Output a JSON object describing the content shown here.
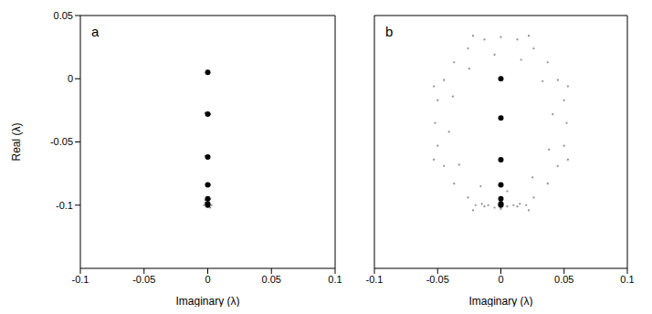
{
  "chart_data": [
    {
      "type": "scatter",
      "title": "a",
      "x_label": "Imaginary (λ)",
      "y_label": "Real (λ)",
      "xlim": [
        -0.1,
        0.1
      ],
      "xticks": [
        -0.1,
        -0.05,
        0,
        0.05,
        0.1
      ],
      "ylim": [
        -0.15,
        0.05
      ],
      "yticks": [
        -0.1,
        -0.05,
        0,
        0.05
      ],
      "series": [
        {
          "color": "#8c8c8c",
          "marker": "point",
          "x": [
            0.001,
            -0.001,
            0.002,
            -0.002,
            0.001,
            -0.002,
            0.002,
            -0.001,
            0.002,
            -0.002,
            0.003,
            -0.003,
            0.002,
            -0.002
          ],
          "y": [
            0.005,
            0.005,
            -0.028,
            -0.027,
            -0.062,
            -0.061,
            -0.084,
            -0.085,
            -0.095,
            -0.096,
            -0.1,
            -0.1,
            -0.102,
            -0.098
          ]
        },
        {
          "color": "#000000",
          "marker": "dot",
          "x": [
            0,
            0,
            0,
            0,
            0,
            0,
            0
          ],
          "y": [
            0.005,
            -0.028,
            -0.062,
            -0.084,
            -0.095,
            -0.099,
            -0.1
          ]
        }
      ]
    },
    {
      "type": "scatter",
      "title": "b",
      "x_label": "Imaginary (λ)",
      "tick_labels": "x",
      "xlim": [
        -0.1,
        0.1
      ],
      "xticks": [
        -0.1,
        -0.05,
        0,
        0.05,
        0.1
      ],
      "ylim": [
        -0.15,
        0.05
      ],
      "yticks": [
        -0.1,
        -0.05,
        0,
        0.05
      ],
      "series": [
        {
          "color": "#8c8c8c",
          "marker": "point",
          "x": [
            0.052,
            0.05,
            0.045,
            0.037,
            0.026,
            0.013,
            0,
            -0.013,
            -0.026,
            -0.037,
            -0.045,
            -0.05,
            -0.052,
            -0.05,
            -0.045,
            -0.037,
            -0.026,
            -0.013,
            0,
            0.013,
            0.026,
            0.037,
            0.045,
            0.05,
            0.041,
            0.033,
            0.016,
            -0.005,
            -0.025,
            -0.038,
            -0.041,
            -0.033,
            -0.016,
            0.005,
            0.025,
            0.038,
            0.053,
            0.022,
            -0.022,
            -0.053,
            -0.053,
            -0.022,
            0.022,
            0.053,
            -0.01,
            0.01,
            -0.005,
            0.005,
            0.015,
            -0.015,
            0.02,
            -0.02
          ],
          "y": [
            -0.035,
            -0.017,
            -0.001,
            0.013,
            0.024,
            0.031,
            0.033,
            0.031,
            0.024,
            0.013,
            -0.001,
            -0.017,
            -0.035,
            -0.053,
            -0.069,
            -0.083,
            -0.094,
            -0.101,
            -0.103,
            -0.101,
            -0.094,
            -0.083,
            -0.069,
            -0.053,
            -0.028,
            -0.002,
            0.015,
            0.019,
            0.008,
            -0.014,
            -0.042,
            -0.068,
            -0.085,
            -0.089,
            -0.078,
            -0.056,
            -0.006,
            0.034,
            0.034,
            -0.006,
            -0.064,
            -0.104,
            -0.104,
            -0.064,
            -0.1,
            -0.1,
            -0.102,
            -0.101,
            -0.099,
            -0.099,
            -0.1,
            -0.1
          ]
        },
        {
          "color": "#000000",
          "marker": "dot",
          "x": [
            0,
            0,
            0,
            0,
            0,
            0,
            0
          ],
          "y": [
            0.0,
            -0.031,
            -0.064,
            -0.084,
            -0.095,
            -0.099,
            -0.1
          ]
        }
      ]
    }
  ]
}
